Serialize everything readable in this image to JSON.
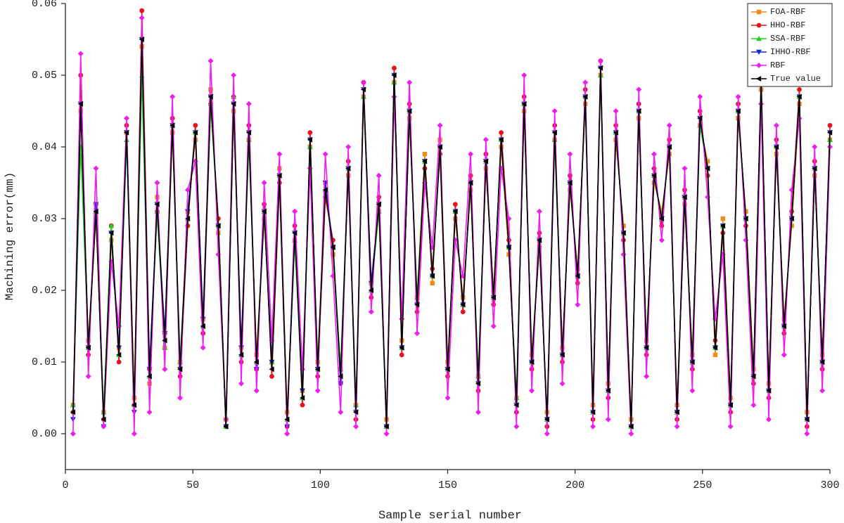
{
  "chart_data": {
    "type": "line",
    "x_label": "Sample serial number",
    "y_label": "Machining error(mm)",
    "xlim": [
      0,
      300
    ],
    "xticks": [
      0,
      50,
      100,
      150,
      200,
      250,
      300
    ],
    "ylim": [
      -0.005,
      0.06
    ],
    "yticks": [
      {
        "value": 0,
        "label": "0.00"
      },
      {
        "value": 0.01,
        "label": "0.01"
      },
      {
        "value": 0.02,
        "label": "0.02"
      },
      {
        "value": 0.03,
        "label": "0.03"
      },
      {
        "value": 0.04,
        "label": "0.04"
      },
      {
        "value": 0.05,
        "label": "0.05"
      },
      {
        "value": 0.06,
        "label": "0.06"
      }
    ],
    "legend": "top-right",
    "x": [
      3,
      6,
      9,
      12,
      15,
      18,
      21,
      24,
      27,
      30,
      33,
      36,
      39,
      42,
      45,
      48,
      51,
      54,
      57,
      60,
      63,
      66,
      69,
      72,
      75,
      78,
      81,
      84,
      87,
      90,
      93,
      96,
      99,
      102,
      105,
      108,
      111,
      114,
      117,
      120,
      123,
      126,
      129,
      132,
      135,
      138,
      141,
      144,
      147,
      150,
      153,
      156,
      159,
      162,
      165,
      168,
      171,
      174,
      177,
      180,
      183,
      186,
      189,
      192,
      195,
      198,
      201,
      204,
      207,
      210,
      213,
      216,
      219,
      222,
      225,
      228,
      231,
      234,
      237,
      240,
      243,
      246,
      249,
      252,
      255,
      258,
      261,
      264,
      267,
      270,
      273,
      276,
      279,
      282,
      285,
      288,
      291,
      294,
      297,
      300
    ],
    "series": [
      {
        "name": "FOA-RBF",
        "color": "#f28a1c",
        "marker": "square",
        "values": [
          0.004,
          0.045,
          0.013,
          0.03,
          0.003,
          0.027,
          0.012,
          0.042,
          0.005,
          0.054,
          0.007,
          0.033,
          0.012,
          0.042,
          0.01,
          0.031,
          0.041,
          0.016,
          0.048,
          0.028,
          0.002,
          0.045,
          0.012,
          0.041,
          0.011,
          0.03,
          0.01,
          0.037,
          0.003,
          0.027,
          0.006,
          0.04,
          0.01,
          0.035,
          0.025,
          0.009,
          0.036,
          0.004,
          0.047,
          0.021,
          0.031,
          0.002,
          0.049,
          0.013,
          0.044,
          0.019,
          0.039,
          0.021,
          0.041,
          0.01,
          0.03,
          0.019,
          0.034,
          0.008,
          0.037,
          0.02,
          0.04,
          0.025,
          0.005,
          0.045,
          0.011,
          0.026,
          0.003,
          0.041,
          0.012,
          0.034,
          0.023,
          0.046,
          0.004,
          0.05,
          0.007,
          0.041,
          0.029,
          0.002,
          0.044,
          0.013,
          0.035,
          0.031,
          0.039,
          0.004,
          0.032,
          0.011,
          0.043,
          0.038,
          0.011,
          0.03,
          0.005,
          0.044,
          0.031,
          0.009,
          0.048,
          0.007,
          0.039,
          0.016,
          0.029,
          0.046,
          0.003,
          0.036,
          0.011,
          0.041
        ]
      },
      {
        "name": "HHO-RBF",
        "color": "#e8121c",
        "marker": "circle",
        "values": [
          0.003,
          0.05,
          0.011,
          0.032,
          0.002,
          0.029,
          0.01,
          0.043,
          0.004,
          0.059,
          0.009,
          0.031,
          0.014,
          0.044,
          0.008,
          0.029,
          0.043,
          0.014,
          0.046,
          0.03,
          0.001,
          0.047,
          0.01,
          0.043,
          0.009,
          0.032,
          0.008,
          0.035,
          0.001,
          0.029,
          0.004,
          0.042,
          0.008,
          0.033,
          0.027,
          0.007,
          0.038,
          0.002,
          0.049,
          0.019,
          0.033,
          0.001,
          0.051,
          0.011,
          0.046,
          0.017,
          0.037,
          0.023,
          0.039,
          0.008,
          0.032,
          0.017,
          0.036,
          0.006,
          0.039,
          0.018,
          0.042,
          0.027,
          0.003,
          0.047,
          0.009,
          0.028,
          0.001,
          0.043,
          0.01,
          0.036,
          0.021,
          0.048,
          0.002,
          0.052,
          0.005,
          0.043,
          0.027,
          0.001,
          0.046,
          0.011,
          0.037,
          0.029,
          0.041,
          0.002,
          0.034,
          0.009,
          0.045,
          0.036,
          0.013,
          0.028,
          0.003,
          0.046,
          0.029,
          0.007,
          0.05,
          0.005,
          0.041,
          0.014,
          0.031,
          0.048,
          0.001,
          0.038,
          0.009,
          0.043
        ]
      },
      {
        "name": "SSA-RBF",
        "color": "#1ed21e",
        "marker": "triangle-up",
        "values": [
          0.004,
          0.04,
          0.012,
          0.031,
          0.003,
          0.029,
          0.011,
          0.041,
          0.004,
          0.05,
          0.008,
          0.031,
          0.012,
          0.043,
          0.01,
          0.03,
          0.042,
          0.015,
          0.046,
          0.029,
          0.001,
          0.047,
          0.011,
          0.041,
          0.01,
          0.031,
          0.01,
          0.036,
          0.002,
          0.027,
          0.005,
          0.04,
          0.009,
          0.034,
          0.026,
          0.009,
          0.037,
          0.004,
          0.047,
          0.02,
          0.031,
          0.001,
          0.049,
          0.012,
          0.045,
          0.019,
          0.038,
          0.022,
          0.04,
          0.009,
          0.031,
          0.018,
          0.035,
          0.008,
          0.038,
          0.019,
          0.041,
          0.026,
          0.005,
          0.046,
          0.01,
          0.027,
          0.002,
          0.041,
          0.011,
          0.035,
          0.022,
          0.047,
          0.003,
          0.05,
          0.006,
          0.042,
          0.028,
          0.001,
          0.045,
          0.012,
          0.036,
          0.03,
          0.04,
          0.003,
          0.033,
          0.01,
          0.043,
          0.037,
          0.012,
          0.029,
          0.004,
          0.045,
          0.03,
          0.008,
          0.049,
          0.006,
          0.04,
          0.015,
          0.03,
          0.047,
          0.002,
          0.037,
          0.01,
          0.041
        ]
      },
      {
        "name": "IHHO-RBF",
        "color": "#1424e6",
        "marker": "triangle-down",
        "values": [
          0.002,
          0.046,
          0.012,
          0.032,
          0.001,
          0.028,
          0.012,
          0.042,
          0.003,
          0.055,
          0.009,
          0.032,
          0.014,
          0.043,
          0.009,
          0.031,
          0.042,
          0.016,
          0.047,
          0.029,
          0.001,
          0.046,
          0.012,
          0.042,
          0.009,
          0.031,
          0.01,
          0.036,
          0.001,
          0.028,
          0.006,
          0.041,
          0.009,
          0.035,
          0.026,
          0.007,
          0.037,
          0.003,
          0.048,
          0.021,
          0.032,
          0.001,
          0.05,
          0.012,
          0.045,
          0.018,
          0.038,
          0.022,
          0.04,
          0.009,
          0.031,
          0.018,
          0.035,
          0.007,
          0.038,
          0.019,
          0.041,
          0.026,
          0.004,
          0.046,
          0.01,
          0.027,
          0.002,
          0.042,
          0.011,
          0.035,
          0.022,
          0.047,
          0.003,
          0.051,
          0.006,
          0.042,
          0.028,
          0.001,
          0.045,
          0.012,
          0.036,
          0.03,
          0.04,
          0.003,
          0.033,
          0.01,
          0.044,
          0.037,
          0.012,
          0.029,
          0.004,
          0.045,
          0.03,
          0.008,
          0.049,
          0.006,
          0.04,
          0.015,
          0.03,
          0.047,
          0.002,
          0.037,
          0.01,
          0.042
        ]
      },
      {
        "name": "RBF",
        "color": "#f01cf0",
        "marker": "diamond",
        "values": [
          0.0,
          0.053,
          0.008,
          0.037,
          0.001,
          0.024,
          0.015,
          0.044,
          0.0,
          0.058,
          0.003,
          0.035,
          0.009,
          0.047,
          0.005,
          0.034,
          0.038,
          0.012,
          0.052,
          0.025,
          0.002,
          0.05,
          0.007,
          0.046,
          0.006,
          0.035,
          0.013,
          0.039,
          0.0,
          0.031,
          0.009,
          0.037,
          0.006,
          0.039,
          0.022,
          0.003,
          0.04,
          0.001,
          0.049,
          0.017,
          0.036,
          0.0,
          0.047,
          0.016,
          0.049,
          0.014,
          0.035,
          0.026,
          0.043,
          0.005,
          0.027,
          0.022,
          0.039,
          0.003,
          0.041,
          0.015,
          0.037,
          0.03,
          0.001,
          0.05,
          0.006,
          0.031,
          0.0,
          0.045,
          0.007,
          0.039,
          0.018,
          0.049,
          0.001,
          0.052,
          0.002,
          0.045,
          0.025,
          0.0,
          0.048,
          0.008,
          0.039,
          0.027,
          0.043,
          0.001,
          0.037,
          0.006,
          0.047,
          0.033,
          0.016,
          0.025,
          0.001,
          0.047,
          0.027,
          0.004,
          0.046,
          0.002,
          0.043,
          0.011,
          0.034,
          0.044,
          0.0,
          0.04,
          0.006,
          0.04
        ]
      },
      {
        "name": "True value",
        "color": "#000000",
        "marker": "triangle-left",
        "values": [
          0.003,
          0.046,
          0.012,
          0.031,
          0.002,
          0.028,
          0.011,
          0.042,
          0.004,
          0.055,
          0.008,
          0.032,
          0.013,
          0.043,
          0.009,
          0.03,
          0.042,
          0.015,
          0.047,
          0.029,
          0.001,
          0.046,
          0.011,
          0.042,
          0.01,
          0.031,
          0.009,
          0.036,
          0.002,
          0.028,
          0.005,
          0.041,
          0.009,
          0.034,
          0.026,
          0.008,
          0.037,
          0.003,
          0.048,
          0.02,
          0.032,
          0.001,
          0.05,
          0.012,
          0.045,
          0.018,
          0.038,
          0.022,
          0.04,
          0.009,
          0.031,
          0.018,
          0.035,
          0.007,
          0.038,
          0.019,
          0.041,
          0.026,
          0.004,
          0.046,
          0.01,
          0.027,
          0.002,
          0.042,
          0.011,
          0.035,
          0.022,
          0.047,
          0.003,
          0.051,
          0.006,
          0.042,
          0.028,
          0.001,
          0.045,
          0.012,
          0.036,
          0.03,
          0.04,
          0.003,
          0.033,
          0.01,
          0.044,
          0.037,
          0.012,
          0.029,
          0.004,
          0.045,
          0.03,
          0.008,
          0.049,
          0.006,
          0.04,
          0.015,
          0.03,
          0.047,
          0.002,
          0.037,
          0.01,
          0.042
        ]
      }
    ]
  }
}
